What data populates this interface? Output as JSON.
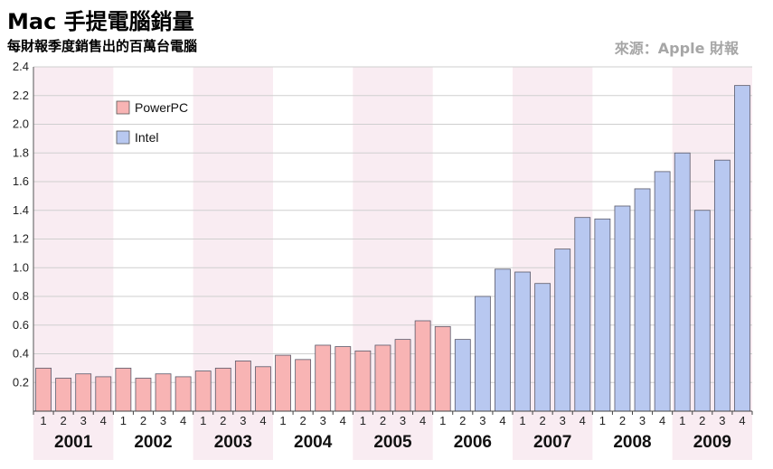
{
  "header": {
    "title": "Mac 手提電腦銷量",
    "subtitle": "每財報季度銷售出的百萬台電腦",
    "source": "來源：Apple 財報"
  },
  "colors": {
    "powerpc": "#f8b4b4",
    "intel": "#b8c8f0",
    "band": "#f9ecf2"
  },
  "chart_data": {
    "type": "bar",
    "ylim": [
      0,
      2.4
    ],
    "yticks": [
      0.2,
      0.4,
      0.6,
      0.8,
      1.0,
      1.2,
      1.4,
      1.6,
      1.8,
      2.0,
      2.2,
      2.4
    ],
    "grid": true,
    "legend_position": "top-left",
    "years": [
      "2001",
      "2002",
      "2003",
      "2004",
      "2005",
      "2006",
      "2007",
      "2008",
      "2009"
    ],
    "quarters": [
      "1",
      "2",
      "3",
      "4"
    ],
    "series": [
      {
        "name": "PowerPC",
        "values": [
          0.3,
          0.23,
          0.26,
          0.24,
          0.3,
          0.23,
          0.26,
          0.24,
          0.28,
          0.3,
          0.35,
          0.31,
          0.39,
          0.36,
          0.46,
          0.45,
          0.42,
          0.46,
          0.5,
          0.63,
          0.59,
          null,
          null,
          null,
          null,
          null,
          null,
          null,
          null,
          null,
          null,
          null,
          null,
          null,
          null,
          null
        ]
      },
      {
        "name": "Intel",
        "values": [
          null,
          null,
          null,
          null,
          null,
          null,
          null,
          null,
          null,
          null,
          null,
          null,
          null,
          null,
          null,
          null,
          null,
          null,
          null,
          null,
          null,
          0.5,
          0.8,
          0.99,
          0.97,
          0.89,
          1.13,
          1.35,
          1.34,
          1.43,
          1.55,
          1.67,
          1.8,
          1.4,
          1.75,
          2.27
        ]
      }
    ]
  }
}
